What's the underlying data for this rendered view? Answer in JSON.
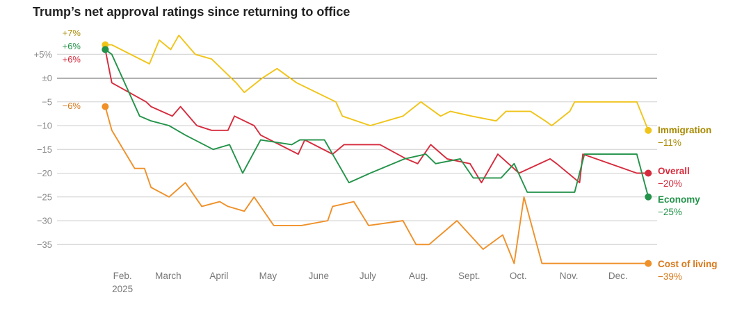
{
  "chart_data": {
    "type": "line",
    "title": "Trump’s net approval ratings since returning to office",
    "xlabel": "",
    "ylabel": "",
    "ylim": [
      -41,
      9
    ],
    "x_ticks": [
      {
        "label": "Feb.",
        "sub": "2025",
        "x": 31.5
      },
      {
        "label": "March",
        "x": 59.5
      },
      {
        "label": "April",
        "x": 90.5
      },
      {
        "label": "May",
        "x": 120.5
      },
      {
        "label": "June",
        "x": 151.5
      },
      {
        "label": "July",
        "x": 181.5
      },
      {
        "label": "Aug.",
        "x": 212.5
      },
      {
        "label": "Sept.",
        "x": 243.5
      },
      {
        "label": "Oct.",
        "x": 273.5
      },
      {
        "label": "Nov.",
        "x": 304.5
      },
      {
        "label": "Dec.",
        "x": 334.5
      }
    ],
    "y_ticks": [
      {
        "value": 5,
        "label": "+5%"
      },
      {
        "value": 0,
        "label": "±0"
      },
      {
        "value": -5,
        "label": "−5"
      },
      {
        "value": -10,
        "label": "−10"
      },
      {
        "value": -15,
        "label": "−15"
      },
      {
        "value": -20,
        "label": "−20"
      },
      {
        "value": -25,
        "label": "−25"
      },
      {
        "value": -30,
        "label": "−30"
      },
      {
        "value": -35,
        "label": "−35"
      }
    ],
    "series": [
      {
        "name": "Immigration",
        "color": "#f0c419",
        "label_color": "#a88a00",
        "start_label": "+7%",
        "end_label": "−11%",
        "x": [
          21,
          25,
          48,
          54,
          61,
          66,
          76,
          86,
          101,
          106,
          117,
          126,
          138,
          162,
          166,
          183,
          203,
          214,
          226,
          232,
          245,
          260,
          266,
          281,
          290,
          294,
          305,
          308,
          346,
          353
        ],
        "values": [
          7,
          7,
          3,
          8,
          6,
          9,
          5,
          4,
          -1,
          -3,
          0,
          2,
          -1,
          -5,
          -8,
          -10,
          -8,
          -5,
          -8,
          -7,
          -8,
          -9,
          -7,
          -7,
          -9,
          -10,
          -7,
          -5,
          -5,
          -11
        ]
      },
      {
        "name": "Overall",
        "color": "#d62b3d",
        "label_color": "#d62b3d",
        "start_label": "+6%",
        "end_label": "−20%",
        "x": [
          21,
          25,
          46,
          49,
          62,
          67,
          77,
          86,
          96,
          100,
          112,
          116,
          139,
          143,
          160,
          167,
          189,
          205,
          212,
          220,
          230,
          244,
          251,
          261,
          274,
          293,
          297,
          311,
          313,
          346,
          353
        ],
        "values": [
          6,
          -1,
          -5,
          -6,
          -8,
          -6,
          -10,
          -11,
          -11,
          -8,
          -10,
          -12,
          -16,
          -13,
          -16,
          -14,
          -14,
          -17,
          -18,
          -14,
          -17,
          -18,
          -22,
          -16,
          -20,
          -17,
          -18,
          -22,
          -16,
          -20,
          -20
        ],
        "end_value": -20
      },
      {
        "name": "Economy",
        "color": "#23934a",
        "label_color": "#23934a",
        "start_label": "+6%",
        "end_label": "−25%",
        "x": [
          21,
          25,
          42,
          49,
          60,
          70,
          87,
          97,
          105,
          116,
          135,
          140,
          155,
          170,
          183,
          204,
          217,
          223,
          238,
          246,
          263,
          271,
          279,
          308,
          314,
          346,
          353
        ],
        "values": [
          6,
          5,
          -8,
          -9,
          -10,
          -12,
          -15,
          -14,
          -20,
          -13,
          -14,
          -13,
          -13,
          -22,
          -20,
          -17,
          -16,
          -18,
          -17,
          -21,
          -21,
          -18,
          -24,
          -24,
          -16,
          -16,
          -25
        ]
      },
      {
        "name": "Cost of living",
        "color": "#ef9028",
        "label_color": "#d8781a",
        "start_label": "−6%",
        "end_label": "−39%",
        "x": [
          21,
          25,
          39,
          45,
          49,
          60,
          70,
          80,
          91,
          96,
          106,
          112,
          124,
          141,
          157,
          160,
          173,
          182,
          203,
          211,
          219,
          236,
          252,
          264,
          271,
          277,
          288,
          300,
          346,
          353
        ],
        "values": [
          -6,
          -11,
          -19,
          -19,
          -23,
          -25,
          -22,
          -27,
          -26,
          -27,
          -28,
          -25,
          -31,
          -31,
          -30,
          -27,
          -26,
          -31,
          -30,
          -35,
          -35,
          -30,
          -36,
          -33,
          -39,
          -25,
          -39,
          -39,
          -39,
          -39
        ]
      }
    ]
  }
}
